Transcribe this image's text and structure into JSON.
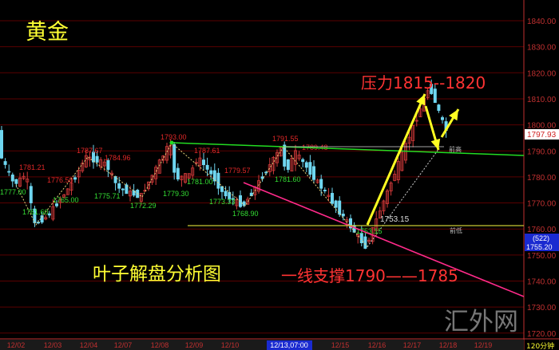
{
  "chart_data": {
    "type": "candlestick",
    "title": "黄金",
    "subtitle": "叶子解盘分析图",
    "timeframe": "120分钟",
    "ylim": [
      1720,
      1840
    ],
    "y_ticks": [
      1840,
      1830,
      1820,
      1810,
      1800,
      1790,
      1780,
      1770,
      1760,
      1750,
      1740,
      1730,
      1720
    ],
    "y_tick_labels": [
      "1840.00",
      "1830.00",
      "1820.00",
      "1810.00",
      "1800.00",
      "1790.00",
      "1780.00",
      "1770.00",
      "1760.00",
      "1750.00",
      "1740.00",
      "1730.00",
      "1720.00"
    ],
    "x_tick_labels": [
      "12/02",
      "12/03",
      "12/04",
      "12/07",
      "12/08",
      "12/09",
      "12/10",
      "12/13,07:00",
      "12/15",
      "12/16",
      "12/17",
      "12/18",
      "12/19"
    ],
    "highlighted_x_label": "12/13,07:00",
    "grid": true,
    "current_price": "1797.93",
    "cursor_box": {
      "count": "(522)",
      "price": "1755.20"
    },
    "pivots": [
      {
        "label": "1790",
        "price": 1790,
        "kind": "none"
      },
      {
        "label": "1777.00",
        "price": 1777,
        "kind": "low"
      },
      {
        "label": "1781.21",
        "price": 1781.21,
        "kind": "high"
      },
      {
        "label": "1761.60",
        "price": 1761.6,
        "kind": "low"
      },
      {
        "label": "1765.00",
        "price": 1765,
        "kind": "low"
      },
      {
        "label": "1776.50",
        "price": 1776.5,
        "kind": "high"
      },
      {
        "label": "1787.67",
        "price": 1787.67,
        "kind": "high"
      },
      {
        "label": "1784.96",
        "price": 1784.96,
        "kind": "high"
      },
      {
        "label": "1775.71",
        "price": 1775.71,
        "kind": "low"
      },
      {
        "label": "1772.29",
        "price": 1772.29,
        "kind": "low"
      },
      {
        "label": "1793.00",
        "price": 1793,
        "kind": "high"
      },
      {
        "label": "1779.30",
        "price": 1779.3,
        "kind": "low"
      },
      {
        "label": "1787.61",
        "price": 1787.61,
        "kind": "high"
      },
      {
        "label": "1781.00",
        "price": 1781,
        "kind": "low"
      },
      {
        "label": "1779.57",
        "price": 1779.57,
        "kind": "high"
      },
      {
        "label": "1773.33",
        "price": 1773.33,
        "kind": "low"
      },
      {
        "label": "1768.90",
        "price": 1768.9,
        "kind": "low"
      },
      {
        "label": "1791.55",
        "price": 1791.55,
        "kind": "high"
      },
      {
        "label": "1789.48",
        "price": 1789.48,
        "kind": "high"
      },
      {
        "label": "1781.60",
        "price": 1781.6,
        "kind": "low"
      },
      {
        "label": "1753.15",
        "price": 1753.15,
        "kind": "low"
      },
      {
        "label": "1815",
        "price": 1815,
        "kind": "none"
      },
      {
        "label": "1797.93",
        "price": 1797.93,
        "kind": "none"
      }
    ],
    "annotations": {
      "resistance": "压力1815--1820",
      "support": "一线支撑1790——1785",
      "prev_high": "前高",
      "prev_low": "前低",
      "low_value": "1753.15"
    },
    "watermark": "汇外网",
    "colors": {
      "up": "#d43a3a",
      "down": "#6fd6f0",
      "grid": "#5a0000",
      "axis": "#c03030",
      "support_line": "#22dd22",
      "trend_line": "#ff2a8a",
      "arrow": "#ffff22"
    }
  }
}
